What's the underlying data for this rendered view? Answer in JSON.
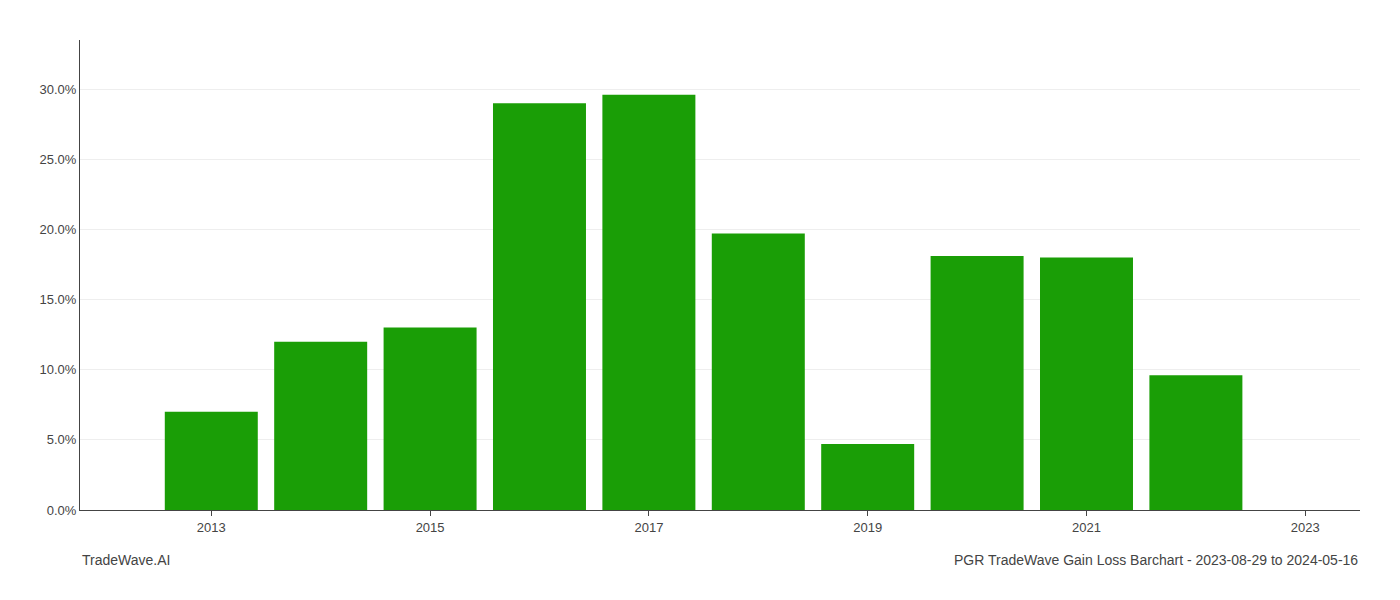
{
  "chart_data": {
    "type": "bar",
    "title": "PGR TradeWave Gain Loss Barchart - 2023-08-29 to 2024-05-16",
    "annotations": [
      "TradeWave.AI"
    ],
    "x": [
      2013,
      2014,
      2015,
      2016,
      2017,
      2018,
      2019,
      2020,
      2021,
      2022
    ],
    "values": [
      0.07,
      0.12,
      0.13,
      0.29,
      0.296,
      0.197,
      0.047,
      0.181,
      0.18,
      0.096
    ],
    "color": "#1a9e06",
    "xlim": [
      2011.8,
      2023.5
    ],
    "xticks": [
      2013,
      2015,
      2017,
      2019,
      2021,
      2023
    ],
    "ylim": [
      0.0,
      0.335
    ],
    "yticks": [
      {
        "value": 0.0,
        "label": "0.0%"
      },
      {
        "value": 0.05,
        "label": "5.0%"
      },
      {
        "value": 0.1,
        "label": "10.0%"
      },
      {
        "value": 0.15,
        "label": "15.0%"
      },
      {
        "value": 0.2,
        "label": "20.0%"
      },
      {
        "value": 0.25,
        "label": "25.0%"
      },
      {
        "value": 0.3,
        "label": "30.0%"
      }
    ],
    "grid": "y"
  }
}
